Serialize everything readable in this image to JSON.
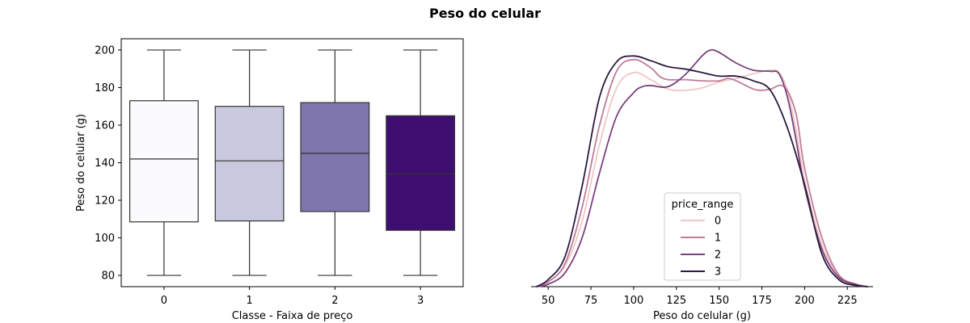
{
  "figure": {
    "title": "Peso do celular"
  },
  "chart_data": [
    {
      "type": "box",
      "title": "",
      "xlabel": "Classe - Faixa de preço",
      "ylabel": "Peso do celular (g)",
      "categories": [
        "0",
        "1",
        "2",
        "3"
      ],
      "ylim": [
        74,
        206
      ],
      "yticks": [
        80,
        100,
        120,
        140,
        160,
        180,
        200
      ],
      "grid": false,
      "boxes": [
        {
          "category": "0",
          "whisker_low": 80,
          "q1": 108.5,
          "median": 142,
          "q3": 173,
          "whisker_high": 200,
          "color": "#fbfbfd"
        },
        {
          "category": "1",
          "whisker_low": 80,
          "q1": 109,
          "median": 141,
          "q3": 170,
          "whisker_high": 200,
          "color": "#c9c9de"
        },
        {
          "category": "2",
          "whisker_low": 80,
          "q1": 114,
          "median": 145,
          "q3": 172,
          "whisker_high": 200,
          "color": "#7f76ad"
        },
        {
          "category": "3",
          "whisker_low": 80,
          "q1": 104,
          "median": 134,
          "q3": 165,
          "whisker_high": 200,
          "color": "#3f0f70"
        }
      ]
    },
    {
      "type": "line",
      "subtype": "kde",
      "title": "",
      "xlabel": "Peso do celular (g)",
      "ylabel": "",
      "xlim": [
        40,
        240
      ],
      "xticks": [
        50,
        75,
        100,
        125,
        150,
        175,
        200,
        225
      ],
      "grid": false,
      "legend": {
        "title": "price_range",
        "placement": "lower-center"
      },
      "series": [
        {
          "name": "0",
          "color": "#eec8c4",
          "points": [
            [
              43,
              0
            ],
            [
              50,
              0.02
            ],
            [
              60,
              0.09
            ],
            [
              70,
              0.28
            ],
            [
              80,
              0.6
            ],
            [
              90,
              0.84
            ],
            [
              100,
              0.905
            ],
            [
              110,
              0.875
            ],
            [
              120,
              0.835
            ],
            [
              130,
              0.83
            ],
            [
              140,
              0.84
            ],
            [
              150,
              0.865
            ],
            [
              160,
              0.88
            ],
            [
              170,
              0.9
            ],
            [
              180,
              0.915
            ],
            [
              185,
              0.905
            ],
            [
              190,
              0.83
            ],
            [
              195,
              0.66
            ],
            [
              200,
              0.45
            ],
            [
              210,
              0.18
            ],
            [
              220,
              0.05
            ],
            [
              230,
              0.01
            ],
            [
              237,
              0
            ]
          ]
        },
        {
          "name": "1",
          "color": "#c07d9a",
          "points": [
            [
              43,
              0
            ],
            [
              50,
              0.02
            ],
            [
              60,
              0.1
            ],
            [
              70,
              0.34
            ],
            [
              80,
              0.68
            ],
            [
              90,
              0.91
            ],
            [
              100,
              0.96
            ],
            [
              110,
              0.925
            ],
            [
              115,
              0.89
            ],
            [
              120,
              0.875
            ],
            [
              130,
              0.875
            ],
            [
              140,
              0.87
            ],
            [
              150,
              0.87
            ],
            [
              155,
              0.88
            ],
            [
              160,
              0.87
            ],
            [
              170,
              0.835
            ],
            [
              175,
              0.83
            ],
            [
              180,
              0.835
            ],
            [
              188,
              0.845
            ],
            [
              195,
              0.73
            ],
            [
              200,
              0.5
            ],
            [
              210,
              0.21
            ],
            [
              220,
              0.05
            ],
            [
              230,
              0.01
            ],
            [
              237,
              0
            ]
          ]
        },
        {
          "name": "2",
          "color": "#7c407d",
          "points": [
            [
              43,
              0
            ],
            [
              50,
              0.01
            ],
            [
              60,
              0.06
            ],
            [
              70,
              0.21
            ],
            [
              80,
              0.48
            ],
            [
              90,
              0.72
            ],
            [
              100,
              0.82
            ],
            [
              105,
              0.845
            ],
            [
              110,
              0.85
            ],
            [
              120,
              0.845
            ],
            [
              130,
              0.895
            ],
            [
              140,
              0.975
            ],
            [
              145,
              1.0
            ],
            [
              150,
              0.99
            ],
            [
              160,
              0.945
            ],
            [
              170,
              0.915
            ],
            [
              180,
              0.91
            ],
            [
              185,
              0.9
            ],
            [
              190,
              0.8
            ],
            [
              195,
              0.62
            ],
            [
              200,
              0.42
            ],
            [
              210,
              0.16
            ],
            [
              220,
              0.04
            ],
            [
              230,
              0.01
            ],
            [
              237,
              0
            ]
          ]
        },
        {
          "name": "3",
          "color": "#2a1b3f",
          "points": [
            [
              43,
              0
            ],
            [
              50,
              0.03
            ],
            [
              60,
              0.13
            ],
            [
              70,
              0.43
            ],
            [
              80,
              0.8
            ],
            [
              90,
              0.95
            ],
            [
              100,
              0.975
            ],
            [
              110,
              0.955
            ],
            [
              120,
              0.93
            ],
            [
              130,
              0.92
            ],
            [
              140,
              0.905
            ],
            [
              150,
              0.89
            ],
            [
              160,
              0.89
            ],
            [
              170,
              0.87
            ],
            [
              180,
              0.83
            ],
            [
              190,
              0.67
            ],
            [
              200,
              0.43
            ],
            [
              210,
              0.14
            ],
            [
              220,
              0.03
            ],
            [
              230,
              0.005
            ],
            [
              237,
              0
            ]
          ]
        }
      ]
    }
  ]
}
